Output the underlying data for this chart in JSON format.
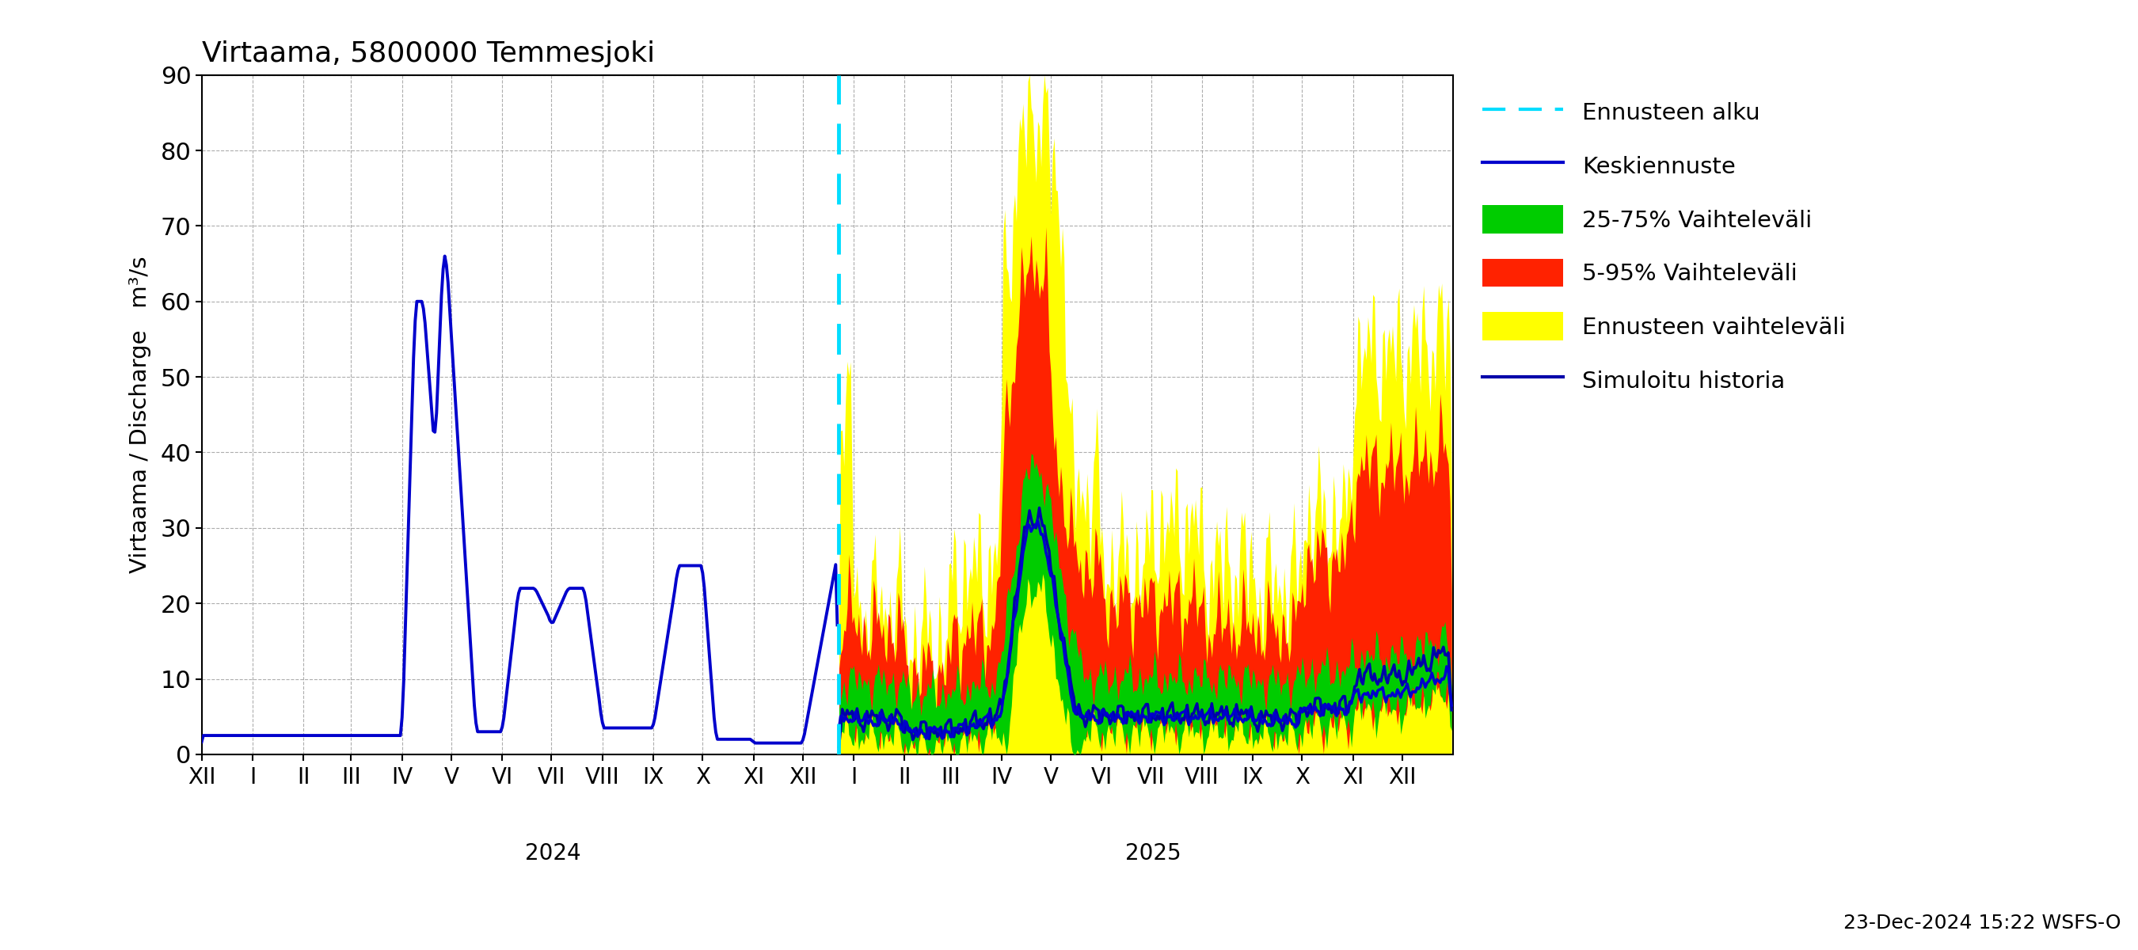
{
  "title": "Virtaama, 5800000 Temmesjoki",
  "ylabel_fi": "Virtaama / Discharge",
  "ylabel_unit": "m³/s",
  "ylim": [
    0,
    90
  ],
  "yticks": [
    0,
    10,
    20,
    30,
    40,
    50,
    60,
    70,
    80,
    90
  ],
  "bg_color": "#ffffff",
  "grid_color": "#999999",
  "forecast_line_color": "#00ddff",
  "history_line_color": "#0000cc",
  "keskiennuste_color": "#0000cc",
  "band_25_75_color": "#00cc00",
  "band_5_95_color": "#ff2200",
  "band_ennuste_color": "#ffff00",
  "simuloitu_color": "#0000aa",
  "timestamp": "23-Dec-2024 15:22 WSFS-O",
  "legend_labels": [
    "Ennusteen alku",
    "Keskiennuste",
    "25-75% Vaihteleväli",
    "5-95% Vaihteleväli",
    "Ennusteen vaihteleväli",
    "Simuloitu historia"
  ]
}
